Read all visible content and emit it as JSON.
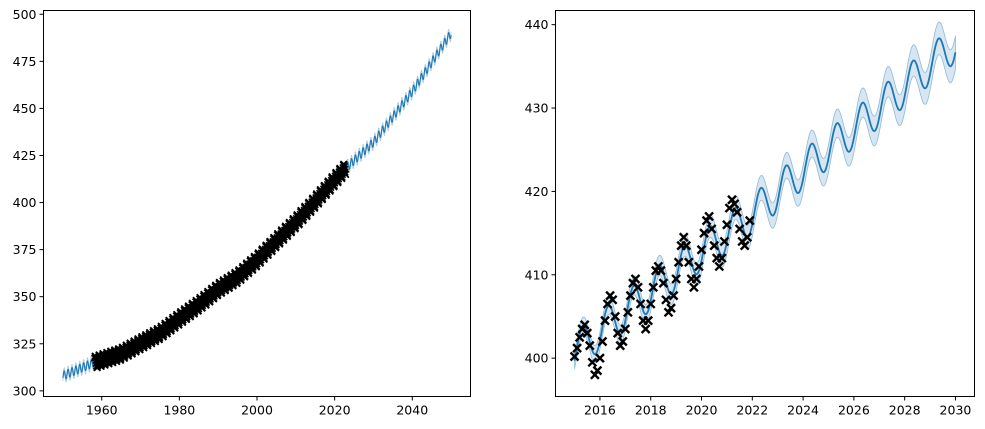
{
  "chart_data": [
    {
      "type": "line",
      "panel": "left",
      "title": "",
      "xlabel": "",
      "ylabel": "",
      "xlim": [
        1945,
        2055
      ],
      "ylim": [
        297,
        502
      ],
      "xticks": [
        1960,
        1980,
        2000,
        2020,
        2040
      ],
      "yticks": [
        300,
        325,
        350,
        375,
        400,
        425,
        450,
        475,
        500
      ],
      "grid": false,
      "legend": "none",
      "series": [
        {
          "role": "observed",
          "marker": "x",
          "color": "#000000",
          "x_range": [
            1958.2,
            2022.9
          ],
          "trend": [
            [
              1958,
              315
            ],
            [
              1965,
              319.6
            ],
            [
              1970,
              325.2
            ],
            [
              1975,
              330.6
            ],
            [
              1980,
              338.4
            ],
            [
              1985,
              345.8
            ],
            [
              1990,
              354.0
            ],
            [
              1995,
              360.5
            ],
            [
              2000,
              369.4
            ],
            [
              2005,
              379.6
            ],
            [
              2010,
              389.6
            ],
            [
              2015,
              400.6
            ],
            [
              2020,
              412.0
            ],
            [
              2022.5,
              417.5
            ]
          ],
          "seasonal_amplitude": 3.3
        },
        {
          "role": "model-mean",
          "marker": "none",
          "color": "#1f77b4",
          "trend": [
            [
              1950,
              308
            ],
            [
              1958,
              315
            ],
            [
              1965,
              319.6
            ],
            [
              1970,
              325.2
            ],
            [
              1975,
              330.6
            ],
            [
              1980,
              338.4
            ],
            [
              1985,
              345.8
            ],
            [
              1990,
              354.0
            ],
            [
              1995,
              360.5
            ],
            [
              2000,
              369.4
            ],
            [
              2005,
              379.6
            ],
            [
              2010,
              389.6
            ],
            [
              2015,
              400.6
            ],
            [
              2020,
              412.0
            ],
            [
              2022.5,
              417.5
            ],
            [
              2030,
              432.0
            ],
            [
              2040,
              459.0
            ],
            [
              2050,
              490.0
            ]
          ],
          "seasonal_amplitude": 2.3
        },
        {
          "role": "confidence-band",
          "marker": "none",
          "color": "#1f77b4",
          "half_width": 1.8
        }
      ]
    },
    {
      "type": "line",
      "panel": "right",
      "title": "",
      "xlabel": "",
      "ylabel": "",
      "xlim": [
        2014.25,
        2030.75
      ],
      "ylim": [
        395.4,
        441.7
      ],
      "xticks": [
        2016,
        2018,
        2020,
        2022,
        2024,
        2026,
        2028,
        2030
      ],
      "yticks": [
        400,
        410,
        420,
        430,
        440
      ],
      "grid": false,
      "legend": "none",
      "series": [
        {
          "role": "observed",
          "marker": "x",
          "color": "#000000",
          "x": [
            2015.0,
            2015.1,
            2015.2,
            2015.3,
            2015.4,
            2015.5,
            2015.6,
            2015.7,
            2015.8,
            2015.9,
            2016.0,
            2016.1,
            2016.2,
            2016.3,
            2016.4,
            2016.5,
            2016.6,
            2016.7,
            2016.8,
            2016.9,
            2017.0,
            2017.1,
            2017.2,
            2017.3,
            2017.4,
            2017.5,
            2017.6,
            2017.7,
            2017.8,
            2017.9,
            2018.0,
            2018.1,
            2018.2,
            2018.3,
            2018.4,
            2018.5,
            2018.6,
            2018.7,
            2018.8,
            2018.9,
            2019.0,
            2019.1,
            2019.2,
            2019.3,
            2019.4,
            2019.5,
            2019.6,
            2019.7,
            2019.8,
            2019.9,
            2020.0,
            2020.1,
            2020.2,
            2020.3,
            2020.4,
            2020.5,
            2020.6,
            2020.7,
            2020.8,
            2020.9,
            2021.0,
            2021.1,
            2021.2,
            2021.3,
            2021.4,
            2021.5,
            2021.6,
            2021.7,
            2021.8,
            2021.9
          ],
          "y": [
            400.2,
            401.2,
            402.5,
            403.5,
            404.0,
            403.0,
            401.5,
            399.5,
            398.0,
            398.5,
            400.0,
            402.0,
            404.5,
            406.5,
            407.5,
            407.0,
            405.0,
            403.0,
            401.5,
            402.0,
            403.5,
            405.5,
            407.5,
            409.0,
            409.5,
            408.5,
            406.5,
            404.5,
            403.5,
            404.5,
            406.5,
            408.5,
            410.5,
            411.0,
            410.5,
            409.0,
            407.0,
            405.5,
            406.0,
            407.5,
            409.5,
            411.5,
            413.5,
            414.5,
            413.5,
            411.5,
            409.5,
            408.5,
            409.5,
            411.0,
            413.0,
            415.0,
            416.5,
            417.0,
            415.5,
            413.5,
            412.0,
            411.0,
            412.0,
            414.0,
            416.0,
            418.0,
            419.0,
            418.5,
            417.5,
            415.5,
            414.0,
            413.5,
            414.5,
            416.5
          ]
        },
        {
          "role": "model-mean",
          "marker": "none",
          "color": "#1f77b4",
          "x_range": [
            2015.0,
            2030.0
          ],
          "trend": [
            [
              2015,
              400.8
            ],
            [
              2016,
              403.2
            ],
            [
              2018,
              408.0
            ],
            [
              2020,
              412.8
            ],
            [
              2022,
              417.2
            ],
            [
              2024,
              422.6
            ],
            [
              2026,
              427.5
            ],
            [
              2028,
              432.5
            ],
            [
              2030,
              437.8
            ]
          ],
          "seasonal_amplitude": 2.3,
          "seasonal_peak_fraction": 0.33
        },
        {
          "role": "confidence-band",
          "marker": "none",
          "color": "#1f77b4",
          "half_width_start": 1.0,
          "half_width_end": 2.0
        }
      ]
    }
  ]
}
